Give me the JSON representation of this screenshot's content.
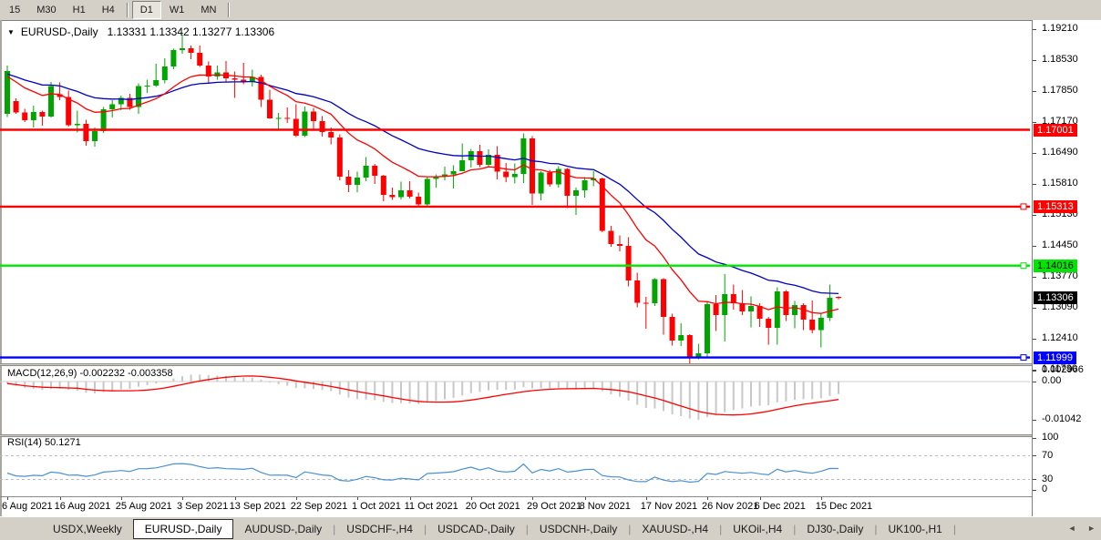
{
  "toolbar": {
    "timeframes": [
      "15",
      "M30",
      "H1",
      "H4",
      "D1",
      "W1",
      "MN"
    ],
    "active_timeframe": "D1"
  },
  "chart": {
    "title": {
      "dropdown_icon": "▼",
      "symbol": "EURUSD-,Daily",
      "ohlc_text": "1.13331 1.13342 1.13277 1.13306"
    },
    "macd_label": "MACD(12,26,9) -0.002232 -0.003358",
    "rsi_label": "RSI(14) 50.1271"
  },
  "chart_data": {
    "type": "candlestick",
    "symbol": "EURUSD",
    "timeframe": "Daily",
    "current_bar": {
      "open": 1.13331,
      "high": 1.13342,
      "low": 1.13277,
      "close": 1.13306
    },
    "price_ticks": [
      "1.19210",
      "1.18530",
      "1.17850",
      "1.17170",
      "1.16490",
      "1.15810",
      "1.15130",
      "1.14450",
      "1.13770",
      "1.13090",
      "1.12410",
      "1.11730"
    ],
    "hlines": [
      {
        "price": 1.17001,
        "label": "1.17001",
        "color": "#ff0000",
        "text_color": "#ffffff",
        "handle": false
      },
      {
        "price": 1.15313,
        "label": "1.15313",
        "color": "#ff0000",
        "text_color": "#ffffff",
        "handle": true
      },
      {
        "price": 1.14016,
        "label": "1.14016",
        "color": "#00e600",
        "text_color": "#000000",
        "handle": true
      },
      {
        "price": 1.11999,
        "label": "1.11999",
        "color": "#0000ff",
        "text_color": "#ffffff",
        "handle": true
      }
    ],
    "current_price": {
      "value": 1.13306,
      "label": "1.13306",
      "bg": "#000000",
      "text_color": "#ffffff"
    },
    "moving_averages": [
      {
        "name": "fast-ma",
        "period": 12,
        "color": "#ff0000"
      },
      {
        "name": "slow-ma",
        "period": 26,
        "color": "#0000c0"
      }
    ],
    "macd": {
      "params": "12,26,9",
      "main": -0.002232,
      "signal": -0.003358,
      "scale_labels": [
        "0.002966",
        "0.00",
        "-0.01042"
      ],
      "histogram_color": "#c8c8c8",
      "signal_color": "#ff0000"
    },
    "rsi": {
      "period": 14,
      "value": 50.1271,
      "levels": [
        "100",
        "70",
        "30",
        "0"
      ],
      "level_lines": [
        70,
        30
      ],
      "line_color": "#4a90d2"
    },
    "colors": {
      "bull": "#00a500",
      "bear": "#ff0000",
      "background": "#ffffff",
      "axis_text": "#000000"
    },
    "x_labels": [
      {
        "text": "6 Aug 2021",
        "bar": 0
      },
      {
        "text": "16 Aug 2021",
        "bar": 6
      },
      {
        "text": "25 Aug 2021",
        "bar": 13
      },
      {
        "text": "3 Sep 2021",
        "bar": 20
      },
      {
        "text": "13 Sep 2021",
        "bar": 26
      },
      {
        "text": "22 Sep 2021",
        "bar": 33
      },
      {
        "text": "1 Oct 2021",
        "bar": 40
      },
      {
        "text": "11 Oct 2021",
        "bar": 46
      },
      {
        "text": "20 Oct 2021",
        "bar": 53
      },
      {
        "text": "29 Oct 2021",
        "bar": 60
      },
      {
        "text": "8 Nov 2021",
        "bar": 66
      },
      {
        "text": "17 Nov 2021",
        "bar": 73
      },
      {
        "text": "26 Nov 2021",
        "bar": 80
      },
      {
        "text": "6 Dec 2021",
        "bar": 86
      },
      {
        "text": "15 Dec 2021",
        "bar": 93
      }
    ],
    "candles": [
      [
        "6 Aug 2021",
        1.1735,
        1.1841,
        1.1728,
        1.1829
      ],
      [
        "9 Aug 2021",
        1.1763,
        1.1769,
        1.1735,
        1.1738
      ],
      [
        "10 Aug 2021",
        1.1738,
        1.1746,
        1.1717,
        1.1721
      ],
      [
        "11 Aug 2021",
        1.1721,
        1.1753,
        1.1705,
        1.1739
      ],
      [
        "12 Aug 2021",
        1.1739,
        1.1742,
        1.1709,
        1.1729
      ],
      [
        "13 Aug 2021",
        1.1729,
        1.1805,
        1.1727,
        1.1796
      ],
      [
        "16 Aug 2021",
        1.1778,
        1.1804,
        1.1765,
        1.1772
      ],
      [
        "17 Aug 2021",
        1.1772,
        1.1786,
        1.1707,
        1.171
      ],
      [
        "18 Aug 2021",
        1.171,
        1.1742,
        1.1694,
        1.1713
      ],
      [
        "19 Aug 2021",
        1.1713,
        1.1722,
        1.1665,
        1.1675
      ],
      [
        "20 Aug 2021",
        1.1675,
        1.1705,
        1.1663,
        1.1697
      ],
      [
        "23 Aug 2021",
        1.1697,
        1.175,
        1.1693,
        1.1745
      ],
      [
        "24 Aug 2021",
        1.1745,
        1.1765,
        1.1727,
        1.1756
      ],
      [
        "25 Aug 2021",
        1.1756,
        1.1775,
        1.1743,
        1.177
      ],
      [
        "26 Aug 2021",
        1.177,
        1.1779,
        1.1744,
        1.175
      ],
      [
        "27 Aug 2021",
        1.175,
        1.1802,
        1.1735,
        1.1796
      ],
      [
        "30 Aug 2021",
        1.1796,
        1.181,
        1.1781,
        1.1797
      ],
      [
        "31 Aug 2021",
        1.1797,
        1.1845,
        1.1794,
        1.1809
      ],
      [
        "1 Sep 2021",
        1.1809,
        1.1857,
        1.1802,
        1.1839
      ],
      [
        "2 Sep 2021",
        1.1839,
        1.1878,
        1.1833,
        1.1875
      ],
      [
        "3 Sep 2021",
        1.1875,
        1.1909,
        1.1867,
        1.1879
      ],
      [
        "6 Sep 2021",
        1.1879,
        1.1885,
        1.1855,
        1.1869
      ],
      [
        "7 Sep 2021",
        1.1869,
        1.1885,
        1.1838,
        1.1841
      ],
      [
        "8 Sep 2021",
        1.1841,
        1.185,
        1.1802,
        1.1817
      ],
      [
        "9 Sep 2021",
        1.1817,
        1.1841,
        1.181,
        1.1826
      ],
      [
        "10 Sep 2021",
        1.1826,
        1.1851,
        1.1805,
        1.1813
      ],
      [
        "13 Sep 2021",
        1.1813,
        1.1828,
        1.177,
        1.181
      ],
      [
        "14 Sep 2021",
        1.181,
        1.1847,
        1.18,
        1.1805
      ],
      [
        "15 Sep 2021",
        1.1805,
        1.1832,
        1.1795,
        1.1816
      ],
      [
        "16 Sep 2021",
        1.1816,
        1.1821,
        1.175,
        1.1766
      ],
      [
        "17 Sep 2021",
        1.1766,
        1.1788,
        1.1724,
        1.1725
      ],
      [
        "20 Sep 2021",
        1.1725,
        1.1737,
        1.17,
        1.1726
      ],
      [
        "21 Sep 2021",
        1.1726,
        1.1749,
        1.1715,
        1.1724
      ],
      [
        "22 Sep 2021",
        1.1724,
        1.1756,
        1.1684,
        1.1687
      ],
      [
        "23 Sep 2021",
        1.1687,
        1.1751,
        1.1684,
        1.174
      ],
      [
        "24 Sep 2021",
        1.174,
        1.1748,
        1.1701,
        1.1719
      ],
      [
        "27 Sep 2021",
        1.1719,
        1.173,
        1.1685,
        1.1695
      ],
      [
        "28 Sep 2021",
        1.1695,
        1.1705,
        1.1668,
        1.1683
      ],
      [
        "29 Sep 2021",
        1.1683,
        1.169,
        1.1589,
        1.1597
      ],
      [
        "30 Sep 2021",
        1.1597,
        1.1611,
        1.1563,
        1.1579
      ],
      [
        "1 Oct 2021",
        1.1579,
        1.1608,
        1.1563,
        1.1595
      ],
      [
        "4 Oct 2021",
        1.1595,
        1.164,
        1.1587,
        1.1621
      ],
      [
        "5 Oct 2021",
        1.1621,
        1.1625,
        1.1581,
        1.1599
      ],
      [
        "6 Oct 2021",
        1.1599,
        1.1601,
        1.1543,
        1.1557
      ],
      [
        "7 Oct 2021",
        1.1557,
        1.1573,
        1.1546,
        1.1552
      ],
      [
        "8 Oct 2021",
        1.1552,
        1.1586,
        1.1547,
        1.1567
      ],
      [
        "11 Oct 2021",
        1.1567,
        1.1587,
        1.1549,
        1.1553
      ],
      [
        "12 Oct 2021",
        1.1553,
        1.1562,
        1.1531,
        1.1536
      ],
      [
        "13 Oct 2021",
        1.1536,
        1.1597,
        1.1533,
        1.1592
      ],
      [
        "14 Oct 2021",
        1.1592,
        1.1602,
        1.1573,
        1.1597
      ],
      [
        "15 Oct 2021",
        1.1597,
        1.1619,
        1.1589,
        1.1602
      ],
      [
        "18 Oct 2021",
        1.1602,
        1.1622,
        1.1571,
        1.1609
      ],
      [
        "19 Oct 2021",
        1.1609,
        1.167,
        1.1609,
        1.1633
      ],
      [
        "20 Oct 2021",
        1.1633,
        1.1658,
        1.1617,
        1.1653
      ],
      [
        "21 Oct 2021",
        1.1653,
        1.1667,
        1.1618,
        1.1623
      ],
      [
        "22 Oct 2021",
        1.1623,
        1.1657,
        1.162,
        1.1645
      ],
      [
        "25 Oct 2021",
        1.1645,
        1.1664,
        1.1591,
        1.1608
      ],
      [
        "26 Oct 2021",
        1.1608,
        1.1627,
        1.1585,
        1.1596
      ],
      [
        "27 Oct 2021",
        1.1596,
        1.1626,
        1.1582,
        1.1603
      ],
      [
        "28 Oct 2021",
        1.1603,
        1.1692,
        1.1583,
        1.1681
      ],
      [
        "29 Oct 2021",
        1.1681,
        1.1686,
        1.1535,
        1.156
      ],
      [
        "1 Nov 2021",
        1.156,
        1.1609,
        1.1545,
        1.1606
      ],
      [
        "2 Nov 2021",
        1.1606,
        1.1612,
        1.1575,
        1.158
      ],
      [
        "3 Nov 2021",
        1.158,
        1.162,
        1.1573,
        1.1614
      ],
      [
        "4 Nov 2021",
        1.1614,
        1.1616,
        1.1528,
        1.1555
      ],
      [
        "5 Nov 2021",
        1.1555,
        1.1573,
        1.1513,
        1.1567
      ],
      [
        "8 Nov 2021",
        1.1567,
        1.1596,
        1.1551,
        1.1589
      ],
      [
        "9 Nov 2021",
        1.1589,
        1.1609,
        1.1576,
        1.1593
      ],
      [
        "10 Nov 2021",
        1.1593,
        1.1595,
        1.1475,
        1.1478
      ],
      [
        "11 Nov 2021",
        1.1478,
        1.1489,
        1.1443,
        1.1449
      ],
      [
        "12 Nov 2021",
        1.1449,
        1.1468,
        1.1433,
        1.1445
      ],
      [
        "15 Nov 2021",
        1.1445,
        1.1464,
        1.1356,
        1.1369
      ],
      [
        "16 Nov 2021",
        1.1369,
        1.1386,
        1.131,
        1.132
      ],
      [
        "17 Nov 2021",
        1.132,
        1.1333,
        1.1263,
        1.1319
      ],
      [
        "18 Nov 2021",
        1.1319,
        1.1374,
        1.1313,
        1.1372
      ],
      [
        "19 Nov 2021",
        1.1372,
        1.1374,
        1.125,
        1.1289
      ],
      [
        "22 Nov 2021",
        1.1289,
        1.1296,
        1.1226,
        1.1237
      ],
      [
        "23 Nov 2021",
        1.1237,
        1.1275,
        1.1225,
        1.1249
      ],
      [
        "24 Nov 2021",
        1.1249,
        1.1251,
        1.1186,
        1.1199
      ],
      [
        "25 Nov 2021",
        1.1199,
        1.123,
        1.1196,
        1.1209
      ],
      [
        "26 Nov 2021",
        1.1209,
        1.1323,
        1.1201,
        1.1317
      ],
      [
        "29 Nov 2021",
        1.1317,
        1.1337,
        1.1258,
        1.1293
      ],
      [
        "30 Nov 2021",
        1.1293,
        1.1383,
        1.1235,
        1.1339
      ],
      [
        "1 Dec 2021",
        1.1339,
        1.136,
        1.1305,
        1.1319
      ],
      [
        "2 Dec 2021",
        1.1319,
        1.1348,
        1.1293,
        1.1301
      ],
      [
        "3 Dec 2021",
        1.1301,
        1.1334,
        1.1266,
        1.1313
      ],
      [
        "6 Dec 2021",
        1.1313,
        1.1319,
        1.1267,
        1.1285
      ],
      [
        "7 Dec 2021",
        1.1285,
        1.1289,
        1.1228,
        1.1265
      ],
      [
        "8 Dec 2021",
        1.1265,
        1.1354,
        1.1228,
        1.1345
      ],
      [
        "9 Dec 2021",
        1.1345,
        1.1348,
        1.128,
        1.1293
      ],
      [
        "10 Dec 2021",
        1.1293,
        1.1324,
        1.1264,
        1.1315
      ],
      [
        "13 Dec 2021",
        1.1315,
        1.1319,
        1.126,
        1.1283
      ],
      [
        "14 Dec 2021",
        1.1283,
        1.1325,
        1.1253,
        1.126
      ],
      [
        "15 Dec 2021",
        1.126,
        1.1298,
        1.1222,
        1.1287
      ],
      [
        "16 Dec 2021",
        1.1287,
        1.136,
        1.128,
        1.1331
      ],
      [
        "17 Dec 2021",
        1.13331,
        1.13342,
        1.13277,
        1.13306
      ]
    ]
  },
  "tabs": {
    "items": [
      {
        "label": "USDX,Weekly",
        "active": false
      },
      {
        "label": "EURUSD-,Daily",
        "active": true
      },
      {
        "label": "AUDUSD-,Daily",
        "active": false
      },
      {
        "label": "USDCHF-,H4",
        "active": false
      },
      {
        "label": "USDCAD-,Daily",
        "active": false
      },
      {
        "label": "USDCNH-,Daily",
        "active": false
      },
      {
        "label": "XAUUSD-,H4",
        "active": false
      },
      {
        "label": "UKOil-,H4",
        "active": false
      },
      {
        "label": "DJ30-,Daily",
        "active": false
      },
      {
        "label": "UK100-,H1",
        "active": false
      }
    ],
    "scroll_left_icon": "◄",
    "scroll_right_icon": "►"
  }
}
